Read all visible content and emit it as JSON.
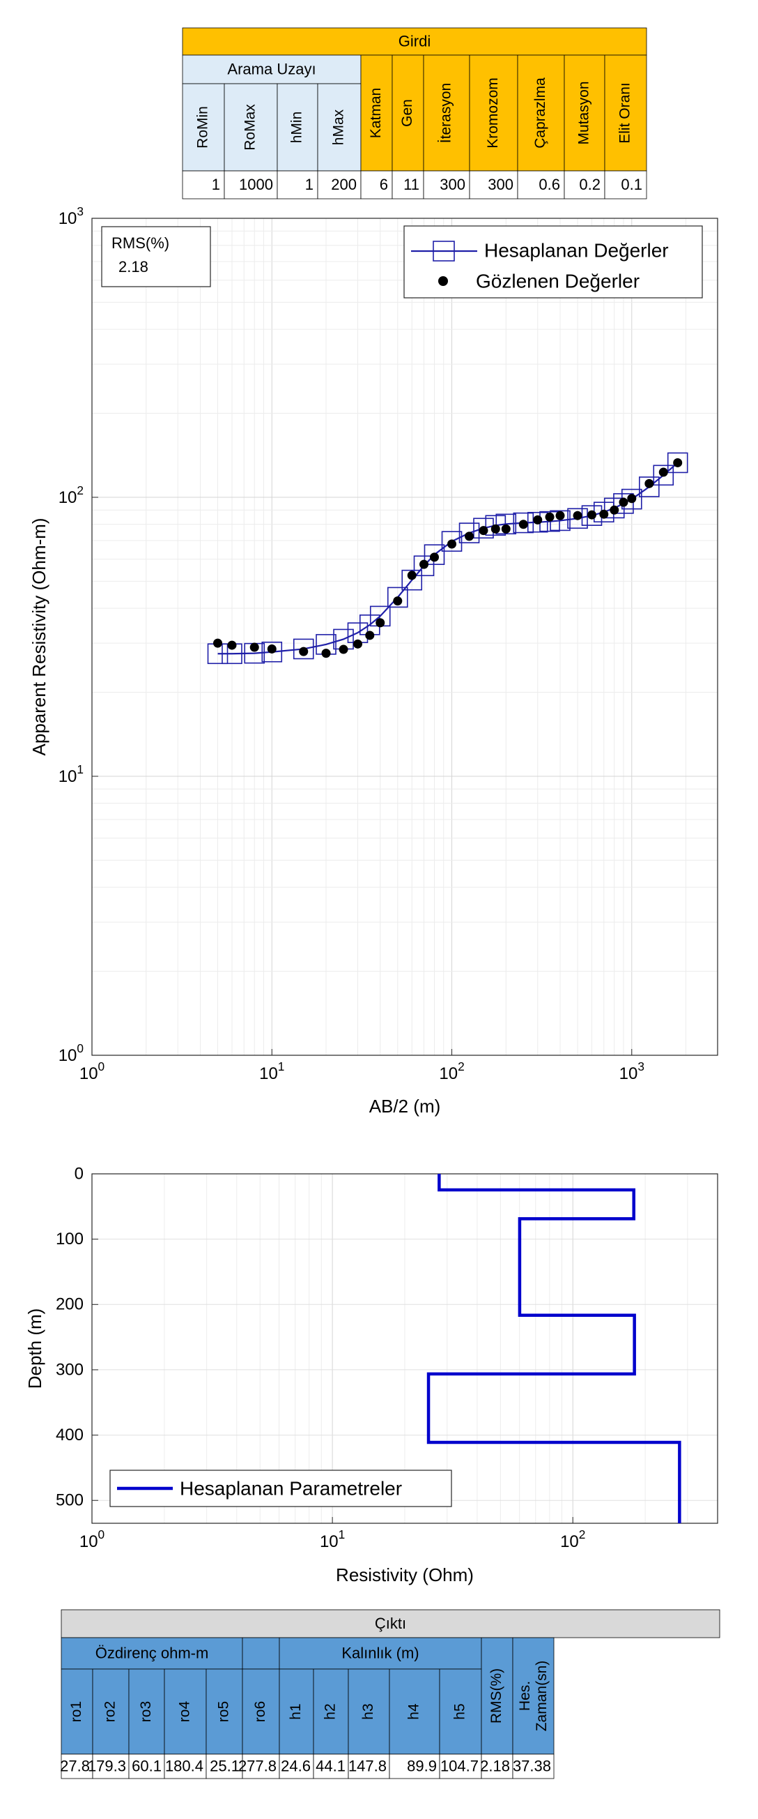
{
  "input_table": {
    "title": "Girdi",
    "group_label": "Arama Uzayı",
    "headers": [
      "RoMin",
      "RoMax",
      "hMin",
      "hMax",
      "Katman",
      "Gen",
      "İterasyon",
      "Kromozom",
      "Çaprazlma",
      "Mutasyon",
      "Elit Oranı"
    ],
    "values": [
      "1",
      "1000",
      "1",
      "200",
      "6",
      "11",
      "300",
      "300",
      "0.6",
      "0.2",
      "0.1"
    ],
    "colors": {
      "search_header": "#ddebf7",
      "param_header": "#ffc000"
    }
  },
  "output_table": {
    "title": "Çıktı",
    "group_resistivity": "Özdirenç ohm-m",
    "group_thickness": "Kalınlık (m)",
    "headers": [
      "ro1",
      "ro2",
      "ro3",
      "ro4",
      "ro5",
      "ro6",
      "h1",
      "h2",
      "h3",
      "h4",
      "h5",
      "RMS(%)",
      "Hes. Zaman(sn)"
    ],
    "values": [
      "27.8",
      "179.3",
      "60.1",
      "180.4",
      "25.1",
      "277.8",
      "24.6",
      "44.1",
      "147.8",
      "89.9",
      "104.7",
      "2.18",
      "37.38"
    ],
    "colors": {
      "title_bg": "#d9d9d9",
      "header_bg": "#5b9bd5"
    }
  },
  "chart_data": [
    {
      "type": "line",
      "xlabel": "AB/2 (m)",
      "ylabel": "Apparent Resistivity (Ohm-m)",
      "xscale": "log",
      "yscale": "log",
      "xlim": [
        1,
        3000
      ],
      "ylim": [
        1,
        1000
      ],
      "x_ticks": [
        "10^0",
        "10^1",
        "10^2",
        "10^3"
      ],
      "y_ticks": [
        "10^0",
        "10^1",
        "10^2",
        "10^3"
      ],
      "grid": true,
      "legend_position": "top-right",
      "rms_box": {
        "label": "RMS(%)",
        "value": "2.18"
      },
      "series": [
        {
          "name": "Hesaplanan Değerler",
          "color": "#1f1fa8",
          "marker": "square",
          "x": [
            5,
            6,
            8,
            10,
            15,
            20,
            25,
            30,
            35,
            40,
            50,
            60,
            70,
            80,
            100,
            125,
            150,
            175,
            200,
            250,
            300,
            350,
            400,
            500,
            600,
            700,
            800,
            900,
            1000,
            1250,
            1500,
            1800
          ],
          "y": [
            27.5,
            27.5,
            27.6,
            27.9,
            28.6,
            29.7,
            31.0,
            32.7,
            34.9,
            37.5,
            43.8,
            50.5,
            56.8,
            62.3,
            69.5,
            74.5,
            77.5,
            79.3,
            80.2,
            81.0,
            81.4,
            81.9,
            82.5,
            84.0,
            86.0,
            88.5,
            91.5,
            95.0,
            98.5,
            109.0,
            120.0,
            133.0
          ]
        },
        {
          "name": "Gözlenen Değerler",
          "color": "#000000",
          "marker": "dot",
          "x": [
            5,
            6,
            8,
            10,
            15,
            20,
            25,
            30,
            35,
            40,
            50,
            60,
            70,
            80,
            100,
            125,
            150,
            175,
            200,
            250,
            300,
            350,
            400,
            500,
            600,
            700,
            800,
            900,
            1000,
            1250,
            1500,
            1800
          ],
          "y": [
            30.0,
            29.5,
            29.0,
            28.6,
            28.0,
            27.6,
            28.5,
            29.8,
            32.0,
            35.5,
            42.5,
            52.5,
            57.5,
            61.0,
            68.0,
            72.5,
            76.0,
            77.0,
            77.0,
            80.0,
            83.0,
            85.0,
            86.0,
            86.0,
            86.5,
            87.0,
            90.0,
            96.0,
            99.0,
            112.0,
            123.0,
            133.0
          ]
        }
      ]
    },
    {
      "type": "line",
      "xlabel": "Resistivity (Ohm)",
      "ylabel": "Depth (m)",
      "xscale": "log",
      "xlim": [
        1,
        400
      ],
      "ylim": [
        0,
        535
      ],
      "y_reversed": true,
      "x_ticks": [
        "10^0",
        "10^1",
        "10^2"
      ],
      "y_ticks": [
        0,
        100,
        200,
        300,
        400,
        500
      ],
      "grid": true,
      "legend_position": "bottom-left",
      "series": [
        {
          "name": "Hesaplanan Parametreler",
          "color": "#0000cc",
          "x": [
            27.8,
            27.8,
            179.3,
            179.3,
            60.1,
            60.1,
            180.4,
            180.4,
            25.1,
            25.1,
            277.8,
            277.8
          ],
          "y": [
            0,
            24.6,
            24.6,
            68.7,
            68.7,
            216.5,
            216.5,
            306.4,
            306.4,
            411.1,
            411.1,
            535
          ]
        }
      ]
    }
  ]
}
